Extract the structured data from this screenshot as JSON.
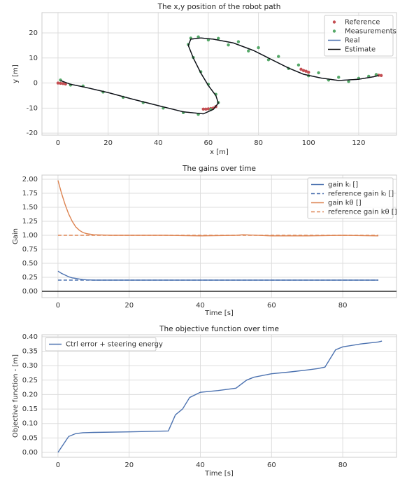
{
  "chart_data": [
    {
      "type": "line",
      "title": "The x,y position of the robot path",
      "x_label": "x [m]",
      "y_label": "y [m]",
      "xlim": [
        -6.4,
        135.1
      ],
      "ylim": [
        -20.8,
        28.1
      ],
      "xticks": [
        0,
        20,
        40,
        60,
        80,
        100,
        120
      ],
      "yticks": [
        -20,
        -10,
        0,
        10,
        20
      ],
      "grid": true,
      "legend": "upper right",
      "series": [
        {
          "name": "Reference",
          "color": "#c44e52",
          "style": "dots",
          "x": [
            0,
            1,
            2,
            3,
            58,
            59,
            60,
            61,
            62,
            63,
            97,
            98,
            99,
            100,
            127,
            128,
            129
          ],
          "values": [
            0,
            -0.1,
            -0.2,
            -0.4,
            -10.4,
            -10.4,
            -10.3,
            -10.2,
            -10,
            -9.4,
            5.5,
            5,
            4.7,
            4.3,
            3.2,
            3.1,
            3
          ]
        },
        {
          "name": "Measurements",
          "color": "#55a868",
          "style": "dots",
          "x": [
            1,
            5,
            10,
            18,
            26,
            34,
            42,
            50,
            56,
            61,
            64,
            63,
            60,
            57,
            54,
            52,
            53,
            56,
            60,
            64,
            68,
            72,
            76,
            80,
            84,
            88,
            92,
            96,
            100,
            104,
            108,
            112,
            116,
            120,
            124,
            127
          ],
          "values": [
            1.2,
            -0.8,
            -1.2,
            -3.6,
            -5.7,
            -7.8,
            -10,
            -11.8,
            -12.5,
            -10.6,
            -7.8,
            -4.5,
            -0.5,
            4.5,
            10.2,
            15.4,
            17.9,
            18.4,
            17.2,
            17.8,
            15.2,
            16.5,
            12.8,
            14.1,
            9.3,
            10.6,
            5.8,
            7.2,
            2.9,
            4.1,
            1.2,
            2.3,
            0.6,
            1.9,
            2.7,
            3.4
          ]
        },
        {
          "name": "Real",
          "color": "#4c72b0",
          "style": "solid",
          "x": [
            1,
            5,
            10,
            20,
            30,
            40,
            50,
            58,
            62,
            64,
            63,
            60,
            57,
            54,
            52,
            53,
            57,
            62,
            70,
            78,
            85,
            92,
            98,
            105,
            112,
            120,
            126,
            128
          ],
          "values": [
            1,
            -0.5,
            -1.5,
            -3.8,
            -6.5,
            -9,
            -11.5,
            -12.3,
            -10.5,
            -8,
            -5,
            -1,
            4,
            10,
            15,
            17.5,
            18,
            17.5,
            16,
            13,
            9.5,
            6,
            3.5,
            2,
            1,
            1.5,
            2.5,
            3
          ]
        },
        {
          "name": "Estimate",
          "color": "#111111",
          "style": "solid",
          "x": [
            1,
            5,
            10,
            20,
            30,
            40,
            50,
            58,
            62,
            64,
            63,
            60,
            57,
            54,
            52,
            53,
            57,
            62,
            70,
            78,
            85,
            92,
            98,
            105,
            112,
            120,
            126,
            128
          ],
          "values": [
            1,
            -0.5,
            -1.5,
            -3.8,
            -6.5,
            -9,
            -11.5,
            -12.3,
            -10.5,
            -8,
            -5,
            -1,
            4,
            10,
            15,
            17.5,
            18,
            17.5,
            16,
            13,
            9.5,
            6,
            3.5,
            2,
            1,
            1.5,
            2.5,
            3
          ]
        }
      ]
    },
    {
      "type": "line",
      "title": "The gains over time",
      "x_label": "Time [s]",
      "y_label": "Gain",
      "xlim": [
        -4.5,
        95.1
      ],
      "ylim": [
        -0.1125,
        2.075
      ],
      "xticks": [
        0,
        20,
        40,
        60,
        80
      ],
      "yticks": [
        {
          "value": 0,
          "label": "0.00"
        },
        {
          "value": 0.25,
          "label": "0.25"
        },
        {
          "value": 0.5,
          "label": "0.50"
        },
        {
          "value": 0.75,
          "label": "0.75"
        },
        {
          "value": 1,
          "label": "1.00"
        },
        {
          "value": 1.25,
          "label": "1.25"
        },
        {
          "value": 1.5,
          "label": "1.50"
        },
        {
          "value": 1.75,
          "label": "1.75"
        },
        {
          "value": 2,
          "label": "2.00"
        }
      ],
      "grid": true,
      "legend": "upper right",
      "hline": 0,
      "series": [
        {
          "name": "gain kₗ []",
          "color": "#4c72b0",
          "style": "solid",
          "x": [
            0,
            1,
            2,
            3,
            4,
            5,
            6,
            7,
            8,
            10,
            15,
            20,
            30,
            40,
            50,
            52,
            60,
            70,
            80,
            90
          ],
          "values": [
            0.36,
            0.32,
            0.29,
            0.26,
            0.24,
            0.23,
            0.22,
            0.21,
            0.205,
            0.2,
            0.2,
            0.2,
            0.2,
            0.2,
            0.2,
            0.2,
            0.2,
            0.2,
            0.2,
            0.2
          ]
        },
        {
          "name": "reference gain kₗ []",
          "color": "#4c72b0",
          "style": "dashed",
          "x": [
            0,
            90
          ],
          "values": [
            0.2,
            0.2
          ]
        },
        {
          "name": "gain kθ []",
          "color": "#dd8452",
          "style": "solid",
          "x": [
            0,
            1,
            2,
            3,
            4,
            5,
            6,
            7,
            8,
            10,
            15,
            20,
            30,
            40,
            50,
            52,
            60,
            70,
            80,
            90
          ],
          "values": [
            1.98,
            1.75,
            1.55,
            1.38,
            1.25,
            1.15,
            1.09,
            1.05,
            1.03,
            1.01,
            1.0,
            1.0,
            1.0,
            0.99,
            1.0,
            1.01,
            0.99,
            0.99,
            1.0,
            0.99
          ]
        },
        {
          "name": "reference gain kθ []",
          "color": "#dd8452",
          "style": "dashed",
          "x": [
            0,
            90
          ],
          "values": [
            1,
            1
          ]
        }
      ]
    },
    {
      "type": "line",
      "title": "The objective function over time",
      "x_label": "Time [s]",
      "y_label": "Objective function - [m]",
      "xlim": [
        -4.5,
        95.1
      ],
      "ylim": [
        -0.017,
        0.407
      ],
      "xticks": [
        0,
        20,
        40,
        60,
        80
      ],
      "yticks": [
        {
          "value": 0,
          "label": "0.00"
        },
        {
          "value": 0.05,
          "label": "0.05"
        },
        {
          "value": 0.1,
          "label": "0.10"
        },
        {
          "value": 0.15,
          "label": "0.15"
        },
        {
          "value": 0.2,
          "label": "0.20"
        },
        {
          "value": 0.25,
          "label": "0.25"
        },
        {
          "value": 0.3,
          "label": "0.30"
        },
        {
          "value": 0.35,
          "label": "0.35"
        },
        {
          "value": 0.4,
          "label": "0.40"
        }
      ],
      "grid": true,
      "legend": "upper left",
      "series": [
        {
          "name": "Ctrl error + steering energy",
          "color": "#4c72b0",
          "style": "solid",
          "x": [
            0,
            3,
            5,
            7,
            10,
            20,
            31,
            33,
            35,
            37,
            40,
            45,
            50,
            53,
            55,
            60,
            65,
            70,
            73,
            75,
            77,
            78,
            80,
            85,
            90,
            91
          ],
          "values": [
            0,
            0.055,
            0.065,
            0.068,
            0.069,
            0.071,
            0.074,
            0.13,
            0.15,
            0.19,
            0.208,
            0.214,
            0.222,
            0.25,
            0.26,
            0.272,
            0.278,
            0.285,
            0.29,
            0.295,
            0.335,
            0.355,
            0.365,
            0.375,
            0.382,
            0.385
          ]
        }
      ]
    }
  ]
}
